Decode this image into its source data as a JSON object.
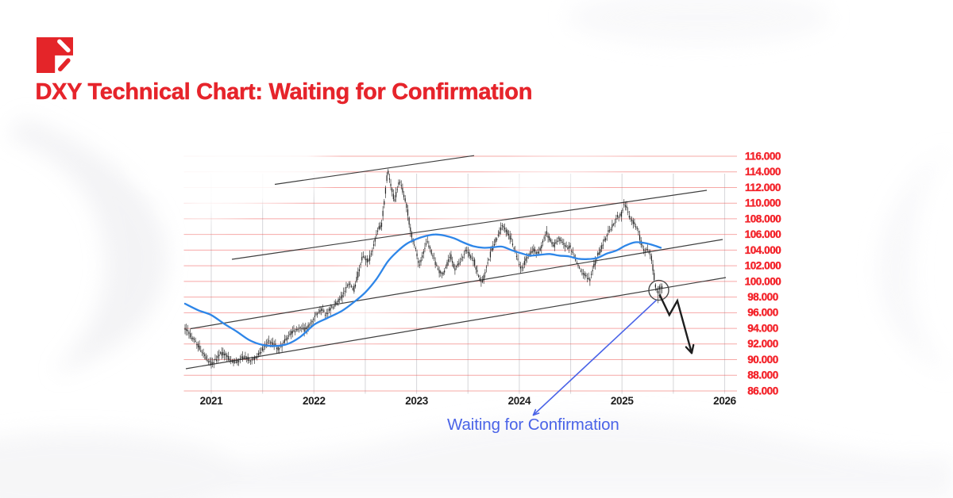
{
  "brand": {
    "logo": "red square with chevron strokes",
    "color": "#e42529"
  },
  "header": {
    "title": "DXY Technical Chart: Waiting for Confirmation",
    "color": "#e6242b"
  },
  "annotation": {
    "label": "Waiting for Confirmation",
    "color": "#4a63e7"
  },
  "chart_data": {
    "type": "candlestick",
    "series_name": "DXY (US Dollar Index)",
    "x_ticks": [
      2021,
      2022,
      2023,
      2024,
      2025,
      2026
    ],
    "x_tick_labels": [
      "2021",
      "2022",
      "2023",
      "2024",
      "2025",
      "2026"
    ],
    "y_ticks": [
      86,
      88,
      90,
      92,
      94,
      96,
      98,
      100,
      102,
      104,
      106,
      108,
      110,
      112,
      114,
      116
    ],
    "y_tick_labels": [
      "86.000",
      "88.000",
      "90.000",
      "92.000",
      "94.000",
      "96.000",
      "98.000",
      "100.000",
      "102.000",
      "104.000",
      "106.000",
      "108.000",
      "110.000",
      "112.000",
      "114.000",
      "116.000"
    ],
    "ylim": [
      84.9,
      116.8
    ],
    "xlim_t": [
      2020.72,
      2026.14
    ],
    "grid": {
      "horizontal": true,
      "vertical": "half-year"
    },
    "price_path": [
      [
        2020.7448,
        94.0
      ],
      [
        2020.7989,
        93.1
      ],
      [
        2020.8608,
        92.2
      ],
      [
        2020.9149,
        91.0
      ],
      [
        2020.9691,
        90.0
      ],
      [
        2021.0155,
        89.4
      ],
      [
        2021.0619,
        90.3
      ],
      [
        2021.116,
        90.9
      ],
      [
        2021.1701,
        90.2
      ],
      [
        2021.2243,
        89.7
      ],
      [
        2021.2784,
        89.9
      ],
      [
        2021.3326,
        90.5
      ],
      [
        2021.379,
        89.9
      ],
      [
        2021.4331,
        90.2
      ],
      [
        2021.495,
        91.2
      ],
      [
        2021.5568,
        92.3
      ],
      [
        2021.611,
        92.0
      ],
      [
        2021.6651,
        91.3
      ],
      [
        2021.727,
        92.6
      ],
      [
        2021.7889,
        93.5
      ],
      [
        2021.8507,
        94.1
      ],
      [
        2021.9126,
        93.8
      ],
      [
        2021.9745,
        94.6
      ],
      [
        2022.0209,
        95.7
      ],
      [
        2022.0673,
        96.4
      ],
      [
        2022.1292,
        95.8
      ],
      [
        2022.191,
        96.9
      ],
      [
        2022.2529,
        97.6
      ],
      [
        2022.2993,
        98.5
      ],
      [
        2022.3457,
        99.8
      ],
      [
        2022.3921,
        98.9
      ],
      [
        2022.4385,
        101.2
      ],
      [
        2022.4849,
        103.5
      ],
      [
        2022.5313,
        102.4
      ],
      [
        2022.5777,
        104.2
      ],
      [
        2022.6241,
        106.5
      ],
      [
        2022.6628,
        107.3
      ],
      [
        2022.686,
        109.8
      ],
      [
        2022.7092,
        112.6
      ],
      [
        2022.7247,
        114.5
      ],
      [
        2022.7401,
        112.9
      ],
      [
        2022.7633,
        111.6
      ],
      [
        2022.7865,
        110.4
      ],
      [
        2022.8097,
        111.4
      ],
      [
        2022.8329,
        112.9
      ],
      [
        2022.8561,
        112.2
      ],
      [
        2022.8794,
        111.0
      ],
      [
        2022.9026,
        110.1
      ],
      [
        2022.9335,
        107.3
      ],
      [
        2022.9644,
        105.2
      ],
      [
        2022.9954,
        104.2
      ],
      [
        2023.0263,
        101.9
      ],
      [
        2023.065,
        103.4
      ],
      [
        2023.1036,
        105.2
      ],
      [
        2023.1423,
        104.0
      ],
      [
        2023.181,
        102.6
      ],
      [
        2023.2196,
        101.3
      ],
      [
        2023.2583,
        100.9
      ],
      [
        2023.297,
        102.2
      ],
      [
        2023.3357,
        103.3
      ],
      [
        2023.3743,
        101.6
      ],
      [
        2023.413,
        102.3
      ],
      [
        2023.4517,
        103.2
      ],
      [
        2023.4903,
        104.0
      ],
      [
        2023.529,
        103.3
      ],
      [
        2023.5677,
        102.5
      ],
      [
        2023.6063,
        100.5
      ],
      [
        2023.645,
        99.9
      ],
      [
        2023.6837,
        101.8
      ],
      [
        2023.7224,
        103.5
      ],
      [
        2023.761,
        104.9
      ],
      [
        2023.7997,
        106.0
      ],
      [
        2023.8384,
        107.1
      ],
      [
        2023.877,
        106.5
      ],
      [
        2023.9157,
        105.6
      ],
      [
        2023.9544,
        104.2
      ],
      [
        2023.993,
        102.6
      ],
      [
        2024.0317,
        101.4
      ],
      [
        2024.0704,
        102.9
      ],
      [
        2024.109,
        103.6
      ],
      [
        2024.1477,
        104.1
      ],
      [
        2024.1864,
        103.5
      ],
      [
        2024.2251,
        104.8
      ],
      [
        2024.2637,
        106.3
      ],
      [
        2024.3024,
        105.3
      ],
      [
        2024.3411,
        104.5
      ],
      [
        2024.3797,
        105.6
      ],
      [
        2024.4184,
        105.1
      ],
      [
        2024.4571,
        104.3
      ],
      [
        2024.4957,
        104.5
      ],
      [
        2024.5344,
        103.4
      ],
      [
        2024.5731,
        102.2
      ],
      [
        2024.6118,
        101.2
      ],
      [
        2024.6504,
        100.7
      ],
      [
        2024.6891,
        100.3
      ],
      [
        2024.7278,
        101.8
      ],
      [
        2024.7664,
        103.3
      ],
      [
        2024.8051,
        104.3
      ],
      [
        2024.8438,
        105.6
      ],
      [
        2024.8824,
        106.6
      ],
      [
        2024.9211,
        107.3
      ],
      [
        2024.9598,
        108.3
      ],
      [
        2024.9985,
        108.4
      ],
      [
        2025.0217,
        109.9
      ],
      [
        2025.0449,
        109.6
      ],
      [
        2025.0681,
        108.5
      ],
      [
        2025.099,
        107.9
      ],
      [
        2025.1299,
        107.2
      ],
      [
        2025.1609,
        106.5
      ],
      [
        2025.1918,
        104.8
      ],
      [
        2025.2227,
        103.8
      ],
      [
        2025.2537,
        104.1
      ],
      [
        2025.2769,
        103.6
      ],
      [
        2025.2923,
        102.9
      ],
      [
        2025.3078,
        101.5
      ],
      [
        2025.3233,
        100.0
      ],
      [
        2025.3387,
        99.0
      ],
      [
        2025.3542,
        98.4
      ],
      [
        2025.3697,
        99.3
      ],
      [
        2025.3852,
        99.4
      ],
      [
        2025.4006,
        99.1
      ]
    ],
    "ma_path": [
      [
        2020.7448,
        97.15
      ],
      [
        2020.8763,
        96.3
      ],
      [
        2021.0,
        95.7
      ],
      [
        2021.1237,
        94.6
      ],
      [
        2021.2475,
        93.6
      ],
      [
        2021.3712,
        92.5
      ],
      [
        2021.495,
        91.9
      ],
      [
        2021.6187,
        91.75
      ],
      [
        2021.7425,
        92.0
      ],
      [
        2021.8662,
        92.9
      ],
      [
        2022.0054,
        94.5
      ],
      [
        2022.1292,
        95.3
      ],
      [
        2022.2684,
        96.2
      ],
      [
        2022.3844,
        97.3
      ],
      [
        2022.5004,
        98.6
      ],
      [
        2022.6087,
        100.3
      ],
      [
        2022.7169,
        102.5
      ],
      [
        2022.8097,
        103.8
      ],
      [
        2022.9026,
        104.8
      ],
      [
        2022.9954,
        105.4
      ],
      [
        2023.0882,
        105.8
      ],
      [
        2023.181,
        106.0
      ],
      [
        2023.2738,
        105.85
      ],
      [
        2023.3666,
        105.5
      ],
      [
        2023.4594,
        104.95
      ],
      [
        2023.5522,
        104.5
      ],
      [
        2023.645,
        104.3
      ],
      [
        2023.7378,
        104.35
      ],
      [
        2023.8306,
        104.45
      ],
      [
        2023.9234,
        104.0
      ],
      [
        2024.0162,
        103.6
      ],
      [
        2024.109,
        103.3
      ],
      [
        2024.2019,
        103.4
      ],
      [
        2024.2947,
        103.5
      ],
      [
        2024.3875,
        103.3
      ],
      [
        2024.4803,
        103.2
      ],
      [
        2024.5731,
        102.9
      ],
      [
        2024.6659,
        102.85
      ],
      [
        2024.7587,
        103.0
      ],
      [
        2024.8515,
        103.55
      ],
      [
        2024.9443,
        103.95
      ],
      [
        2025.0371,
        104.6
      ],
      [
        2025.1299,
        105.0
      ],
      [
        2025.2227,
        104.9
      ],
      [
        2025.3001,
        104.65
      ],
      [
        2025.3774,
        104.3
      ]
    ],
    "ma_name": "moving average",
    "trendlines": [
      {
        "from": [
          2021.6187,
          112.402
        ],
        "to": [
          2023.5599,
          116.081
        ]
      },
      {
        "from": [
          2021.2011,
          102.824
        ],
        "to": [
          2025.826,
          111.642
        ]
      },
      {
        "from": [
          2020.7989,
          93.956
        ],
        "to": [
          2025.9807,
          105.358
        ]
      },
      {
        "from": [
          2020.7525,
          88.838
        ],
        "to": [
          2026.0116,
          100.493
        ]
      }
    ],
    "circle_marker": {
      "t": 2025.3581,
      "v": 98.872,
      "radius_px": 12.5
    },
    "forecast_arrow": [
      [
        2025.3658,
        98.314
      ],
      [
        2025.4609,
        95.709
      ],
      [
        2025.5391,
        97.524
      ],
      [
        2025.679,
        90.834
      ]
    ],
    "callout_arrow": {
      "from": [
        2025.3349,
        97.605
      ],
      "to": [
        2024.1361,
        82.909
      ]
    },
    "colors": {
      "candle": "#1e1e1e",
      "ma": "#2e86e8",
      "trendline": "#2e2e2e",
      "grid_h": "#ef5350",
      "grid_v": "#d9d9dc",
      "y_label": "#f3232a",
      "x_label": "#1c1c1c",
      "arrow": "#1e1e1e",
      "callout": "#4a63e7",
      "circle": "#454545"
    }
  }
}
